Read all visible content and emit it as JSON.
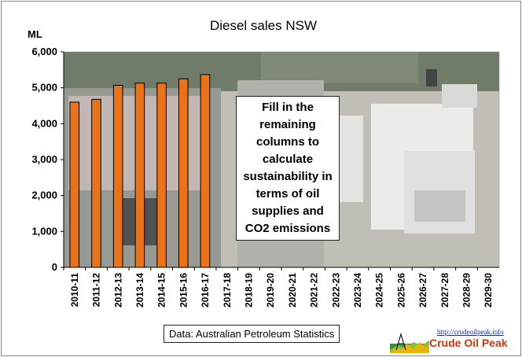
{
  "chart_data": {
    "type": "bar",
    "title": "Diesel sales NSW",
    "ylabel": "ML",
    "xlabel": "",
    "categories": [
      "2010-11",
      "2011-12",
      "2012-13",
      "2013-14",
      "2014-15",
      "2015-16",
      "2016-17",
      "2017-18",
      "2018-19",
      "2019-20",
      "2020-21",
      "2021-22",
      "2022-23",
      "2023-24",
      "2024-25",
      "2025-26",
      "2026-27",
      "2027-28",
      "2028-29",
      "2029-30"
    ],
    "values": [
      4600,
      4680,
      5070,
      5130,
      5130,
      5250,
      5370,
      null,
      null,
      null,
      null,
      null,
      null,
      null,
      null,
      null,
      null,
      null,
      null,
      null
    ],
    "ylim": [
      0,
      6000
    ],
    "yticks": [
      0,
      1000,
      2000,
      3000,
      4000,
      5000,
      6000
    ],
    "ytick_labels": [
      "0",
      "1,000",
      "2,000",
      "3,000",
      "4,000",
      "5,000",
      "6,000"
    ],
    "bar_color": "#e8731a",
    "bar_edge_color": "#000000",
    "grid": false,
    "legend": "none",
    "background": "photo of diesel trucks on a highway (simplified)"
  },
  "annotation": "Fill in the remaining columns to calculate sustainability in terms of oil supplies and CO2 emissions",
  "source": "Data: Australian Petroleum Statistics",
  "logo": {
    "url": "http://crudeoilpeak.info",
    "name": "Crude Oil Peak"
  }
}
